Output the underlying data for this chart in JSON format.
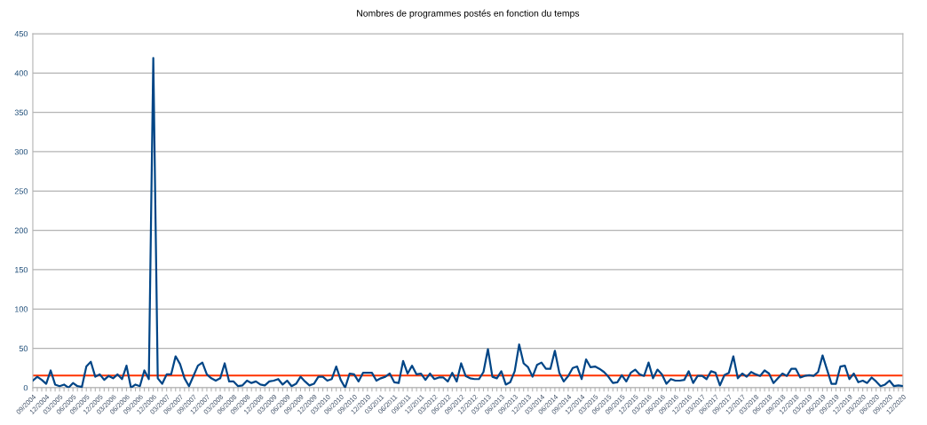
{
  "chart_data": {
    "type": "line",
    "title": "Nombres de programmes postés en fonction du temps",
    "categories": [
      "09/2004",
      null,
      null,
      "12/2004",
      null,
      null,
      "03/2005",
      null,
      null,
      "06/2005",
      null,
      null,
      "09/2005",
      null,
      null,
      "12/2005",
      null,
      null,
      "03/2006",
      null,
      null,
      "06/2006",
      null,
      null,
      "09/2006",
      null,
      null,
      "12/2006",
      null,
      null,
      "03/2007",
      null,
      null,
      "06/2007",
      null,
      null,
      "09/2007",
      null,
      null,
      "12/2007",
      null,
      null,
      "03/2008",
      null,
      null,
      "06/2008",
      null,
      null,
      "09/2008",
      null,
      null,
      "12/2008",
      null,
      null,
      "03/2009",
      null,
      null,
      "06/2009",
      null,
      null,
      "09/2009",
      null,
      null,
      "12/2009",
      null,
      null,
      "03/2010",
      null,
      null,
      "06/2010",
      null,
      null,
      "09/2010",
      null,
      null,
      "12/2010",
      null,
      null,
      "03/2011",
      null,
      null,
      "06/2011",
      null,
      null,
      "09/2011",
      null,
      null,
      "12/2011",
      null,
      null,
      "03/2012",
      null,
      null,
      "06/2012",
      null,
      null,
      "09/2012",
      null,
      null,
      "12/2012",
      null,
      null,
      "03/2013",
      null,
      null,
      "06/2013",
      null,
      null,
      "09/2013",
      null,
      null,
      "12/2013",
      null,
      null,
      "03/2014",
      null,
      null,
      "06/2014",
      null,
      null,
      "09/2014",
      null,
      null,
      "12/2014",
      null,
      null,
      "03/2015",
      null,
      null,
      "06/2015",
      null,
      null,
      "09/2015",
      null,
      null,
      "12/2015",
      null,
      null,
      "03/2016",
      null,
      null,
      "06/2016",
      null,
      null,
      "09/2016",
      null,
      null,
      "12/2016",
      null,
      null,
      "03/2017",
      null,
      null,
      "06/2017",
      null,
      null,
      "09/2017",
      null,
      null,
      "12/2017",
      null,
      null,
      "03/2018",
      null,
      null,
      "06/2018",
      null,
      null,
      "09/2018",
      null,
      null,
      "12/2018",
      null,
      null,
      "03/2019",
      null,
      null,
      "06/2019",
      null,
      null,
      "09/2019",
      null,
      null,
      "12/2019",
      null,
      null,
      "03/2020",
      null,
      null,
      "06/2020",
      null,
      null,
      "09/2020",
      null,
      null,
      "12/2020"
    ],
    "series": [
      {
        "color": "#004586",
        "values": [
          9,
          14,
          10,
          5,
          22,
          4,
          2,
          4,
          0,
          6,
          2,
          1,
          27,
          33,
          14,
          17,
          10,
          15,
          12,
          17,
          11,
          28,
          0,
          4,
          2,
          22,
          11,
          419,
          12,
          5,
          17,
          17,
          40,
          30,
          12,
          2,
          15,
          28,
          32,
          17,
          12,
          9,
          12,
          31,
          8,
          8,
          2,
          3,
          9,
          6,
          8,
          4,
          3,
          8,
          9,
          11,
          4,
          9,
          2,
          5,
          14,
          8,
          3,
          5,
          14,
          14,
          9,
          11,
          27,
          10,
          0,
          18,
          17,
          8,
          19,
          19,
          19,
          9,
          12,
          14,
          18,
          7,
          6,
          34,
          18,
          28,
          17,
          18,
          10,
          18,
          11,
          13,
          13,
          8,
          19,
          8,
          31,
          15,
          12,
          11,
          11,
          20,
          49,
          14,
          12,
          21,
          4,
          7,
          21,
          55,
          31,
          26,
          14,
          29,
          32,
          24,
          24,
          47,
          19,
          8,
          15,
          25,
          27,
          11,
          36,
          26,
          27,
          24,
          20,
          14,
          6,
          7,
          16,
          8,
          19,
          23,
          17,
          15,
          32,
          12,
          23,
          17,
          5,
          11,
          9,
          9,
          10,
          21,
          6,
          15,
          15,
          11,
          21,
          19,
          3,
          16,
          19,
          40,
          12,
          18,
          14,
          20,
          17,
          15,
          22,
          18,
          6,
          12,
          18,
          15,
          24,
          24,
          13,
          15,
          16,
          15,
          20,
          41,
          23,
          5,
          5,
          27,
          28,
          11,
          18,
          7,
          9,
          6,
          13,
          8,
          2,
          4,
          9,
          2,
          3,
          2
        ]
      }
    ],
    "ylim": [
      0,
      450
    ],
    "yticks": [
      0,
      50,
      100,
      150,
      200,
      250,
      300,
      350,
      400,
      450
    ],
    "grid": "y",
    "legend": false,
    "marker": "none",
    "line_style": "solid",
    "ref_lines": [
      {
        "axis": "y",
        "value": 15.5,
        "label": null,
        "color": "#ff3300",
        "line_style": "solid"
      }
    ]
  }
}
